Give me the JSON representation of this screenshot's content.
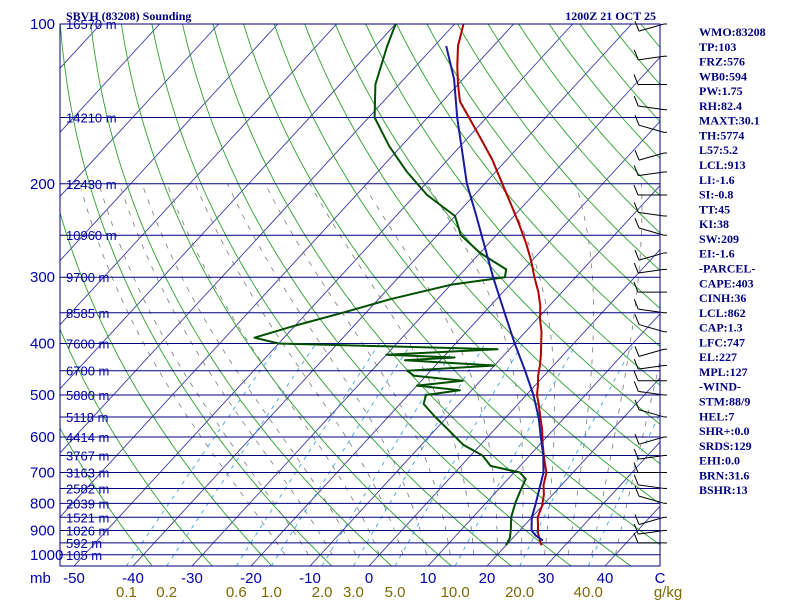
{
  "header": {
    "title": "SBVH (83208) Sounding",
    "time": "1200Z 21 OCT 25"
  },
  "colors": {
    "isobar": "#000080",
    "isotherm": "#3a3aa8",
    "dry_adiabat": "#2ca02c",
    "moist_adiabat": "#7a7a7a",
    "mixing_ratio": "#3da6e8",
    "temperature": "#b00000",
    "dewpoint": "#005000",
    "parcel": "#1a1aa0",
    "wind": "#000000"
  },
  "chart_data": {
    "type": "skew-t",
    "x_unit": "C",
    "mixing_unit": "g/kg",
    "pressure_label": "mb",
    "x_ticks": [
      "-50",
      "-40",
      "-30",
      "-20",
      "-10",
      "0",
      "10",
      "20",
      "30",
      "40",
      "C"
    ],
    "x_tick_values": [
      -50,
      -40,
      -30,
      -20,
      -10,
      0,
      10,
      20,
      30,
      40
    ],
    "pressure_ticks": [
      "100",
      "200",
      "300",
      "400",
      "500",
      "600",
      "700",
      "800",
      "900",
      "1000"
    ],
    "pressure_tick_values": [
      100,
      200,
      300,
      400,
      500,
      600,
      700,
      800,
      900,
      1000
    ],
    "mixing_ratios": [
      "0.1",
      "0.2",
      "0.6",
      "1.0",
      "2.0",
      "3.0",
      "5.0",
      "10.0",
      "20.0",
      "40.0",
      "g/kg"
    ],
    "mixing_ratio_values": [
      0.1,
      0.2,
      0.6,
      1.0,
      2.0,
      3.0,
      5.0,
      10.0,
      20.0,
      40.0
    ],
    "heights": [
      {
        "p": 100,
        "label": "16570 m"
      },
      {
        "p": 150,
        "label": "14210 m"
      },
      {
        "p": 200,
        "label": "12430 m"
      },
      {
        "p": 250,
        "label": "10960 m"
      },
      {
        "p": 300,
        "label": "9700 m"
      },
      {
        "p": 350,
        "label": "8585 m"
      },
      {
        "p": 400,
        "label": "7600 m"
      },
      {
        "p": 450,
        "label": "6700 m"
      },
      {
        "p": 500,
        "label": "5880 m"
      },
      {
        "p": 550,
        "label": "5118 m"
      },
      {
        "p": 600,
        "label": "4414 m"
      },
      {
        "p": 650,
        "label": "3767 m"
      },
      {
        "p": 700,
        "label": "3163 m"
      },
      {
        "p": 750,
        "label": "2582 m"
      },
      {
        "p": 800,
        "label": "2039 m"
      },
      {
        "p": 850,
        "label": "1521 m"
      },
      {
        "p": 900,
        "label": "1026 m"
      },
      {
        "p": 950,
        "label": "592 m"
      },
      {
        "p": 1000,
        "label": "105 m"
      }
    ],
    "temperature": [
      [
        960,
        26.0
      ],
      [
        930,
        24.5
      ],
      [
        910,
        23.5
      ],
      [
        880,
        22.3
      ],
      [
        850,
        21.0
      ],
      [
        810,
        20.0
      ],
      [
        770,
        18.5
      ],
      [
        740,
        17.0
      ],
      [
        700,
        15.5
      ],
      [
        660,
        13.0
      ],
      [
        620,
        10.5
      ],
      [
        580,
        8.0
      ],
      [
        550,
        5.8
      ],
      [
        520,
        3.5
      ],
      [
        500,
        1.8
      ],
      [
        480,
        0.5
      ],
      [
        460,
        -1.0
      ],
      [
        440,
        -2.3
      ],
      [
        420,
        -3.8
      ],
      [
        400,
        -5.5
      ],
      [
        380,
        -7.3
      ],
      [
        360,
        -9.5
      ],
      [
        340,
        -11.5
      ],
      [
        320,
        -14.0
      ],
      [
        300,
        -17.0
      ],
      [
        280,
        -20.0
      ],
      [
        260,
        -23.5
      ],
      [
        240,
        -27.5
      ],
      [
        220,
        -32.0
      ],
      [
        200,
        -37.0
      ],
      [
        180,
        -42.5
      ],
      [
        165,
        -47.5
      ],
      [
        150,
        -53.0
      ],
      [
        140,
        -57.0
      ],
      [
        130,
        -60.0
      ],
      [
        120,
        -63.0
      ],
      [
        110,
        -66.0
      ],
      [
        100,
        -68.5
      ]
    ],
    "dewpoint": [
      [
        960,
        20.0
      ],
      [
        930,
        19.5
      ],
      [
        900,
        18.5
      ],
      [
        850,
        16.5
      ],
      [
        800,
        15.0
      ],
      [
        760,
        14.0
      ],
      [
        720,
        13.0
      ],
      [
        700,
        11.0
      ],
      [
        680,
        5.0
      ],
      [
        650,
        2.0
      ],
      [
        620,
        -3.0
      ],
      [
        580,
        -8.0
      ],
      [
        550,
        -12.0
      ],
      [
        520,
        -16.0
      ],
      [
        500,
        -17.0
      ],
      [
        490,
        -12.0
      ],
      [
        480,
        -20.0
      ],
      [
        470,
        -13.0
      ],
      [
        460,
        -22.0
      ],
      [
        450,
        -24.0
      ],
      [
        440,
        -10.0
      ],
      [
        430,
        -26.0
      ],
      [
        425,
        -18.0
      ],
      [
        420,
        -30.0
      ],
      [
        410,
        -12.0
      ],
      [
        400,
        -50.0
      ],
      [
        390,
        -55.0
      ],
      [
        370,
        -50.0
      ],
      [
        350,
        -44.0
      ],
      [
        330,
        -38.0
      ],
      [
        310,
        -30.0
      ],
      [
        300,
        -22.0
      ],
      [
        290,
        -23.0
      ],
      [
        270,
        -30.0
      ],
      [
        250,
        -36.0
      ],
      [
        230,
        -40.0
      ],
      [
        210,
        -48.0
      ],
      [
        190,
        -55.0
      ],
      [
        170,
        -62.0
      ],
      [
        150,
        -69.0
      ],
      [
        130,
        -74.0
      ],
      [
        110,
        -78.0
      ],
      [
        100,
        -80.0
      ]
    ],
    "parcel": [
      [
        940,
        25.5
      ],
      [
        920,
        23.5
      ],
      [
        900,
        22.0
      ],
      [
        850,
        20.0
      ],
      [
        800,
        18.5
      ],
      [
        750,
        16.8
      ],
      [
        700,
        15.0
      ],
      [
        650,
        12.3
      ],
      [
        600,
        9.0
      ],
      [
        550,
        5.5
      ],
      [
        500,
        1.2
      ],
      [
        450,
        -4.0
      ],
      [
        400,
        -10.0
      ],
      [
        350,
        -16.5
      ],
      [
        300,
        -24.0
      ],
      [
        250,
        -32.5
      ],
      [
        227,
        -37.0
      ],
      [
        200,
        -43.0
      ],
      [
        150,
        -55.0
      ],
      [
        127,
        -61.5
      ],
      [
        110,
        -68.0
      ]
    ],
    "wind_pressures": [
      100,
      115,
      130,
      145,
      160,
      175,
      190,
      210,
      230,
      250,
      270,
      290,
      320,
      350,
      380,
      410,
      440,
      470,
      500,
      550,
      600,
      650,
      700,
      750,
      800,
      850,
      900,
      950
    ]
  },
  "indices": [
    "WMO:83208",
    "TP:103",
    "FRZ:576",
    "WB0:594",
    "PW:1.75",
    "RH:82.4",
    "MAXT:30.1",
    "TH:5774",
    "L57:5.2",
    "LCL:913",
    "LI:-1.6",
    "SI:-0.8",
    "TT:45",
    "KI:38",
    "SW:209",
    "EI:-1.6",
    "-PARCEL-",
    "CAPE:403",
    "CINH:36",
    "LCL:862",
    "CAP:1.3",
    "LFC:747",
    "EL:227",
    "MPL:127",
    "-WIND-",
    "STM:88/9",
    "HEL:7",
    "SHR+:0.0",
    "SRDS:129",
    "EHI:0.0",
    "BRN:31.6",
    "BSHR:13"
  ]
}
